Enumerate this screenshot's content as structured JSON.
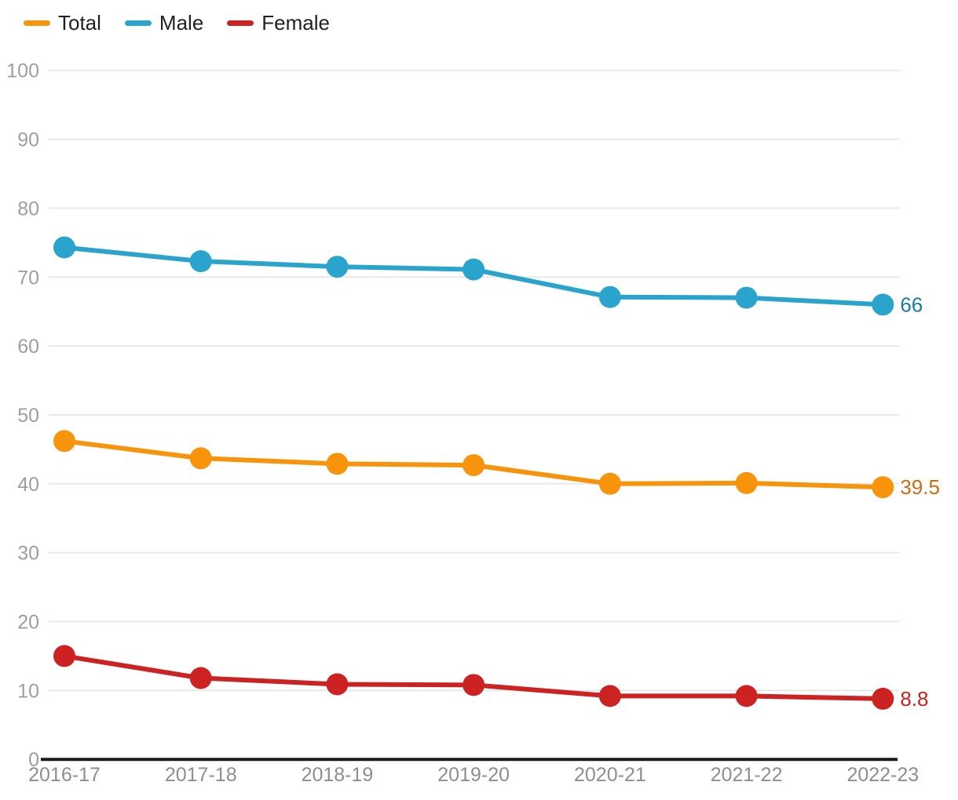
{
  "chart_data": {
    "type": "line",
    "title": "",
    "xlabel": "",
    "ylabel": "",
    "categories": [
      "2016-17",
      "2017-18",
      "2018-19",
      "2019-20",
      "2020-21",
      "2021-22",
      "2022-23"
    ],
    "series": [
      {
        "name": "Total",
        "color": "#f7940b",
        "label_color": "#ce6c15",
        "values": [
          46.2,
          43.7,
          42.9,
          42.7,
          40.0,
          40.1,
          39.5
        ],
        "end_label": "39.5"
      },
      {
        "name": "Male",
        "color": "#2ba4cd",
        "label_color": "#1e7ca3",
        "values": [
          74.3,
          72.3,
          71.5,
          71.1,
          67.1,
          67.0,
          66
        ],
        "end_label": "66"
      },
      {
        "name": "Female",
        "color": "#cc2222",
        "label_color": "#c5221f",
        "values": [
          15.0,
          11.8,
          10.9,
          10.8,
          9.2,
          9.2,
          8.8
        ],
        "end_label": "8.8"
      }
    ],
    "ylim": [
      0,
      100
    ],
    "yticks": [
      0,
      10,
      20,
      30,
      40,
      50,
      60,
      70,
      80,
      90,
      100
    ],
    "grid": true,
    "legend_position": "top-left",
    "gridline_color": "#e8e8e8",
    "baseline_color": "#1a1a1a",
    "ytick_label_color": "#9e9e9e",
    "xtick_label_color": "#8e8e8e"
  }
}
